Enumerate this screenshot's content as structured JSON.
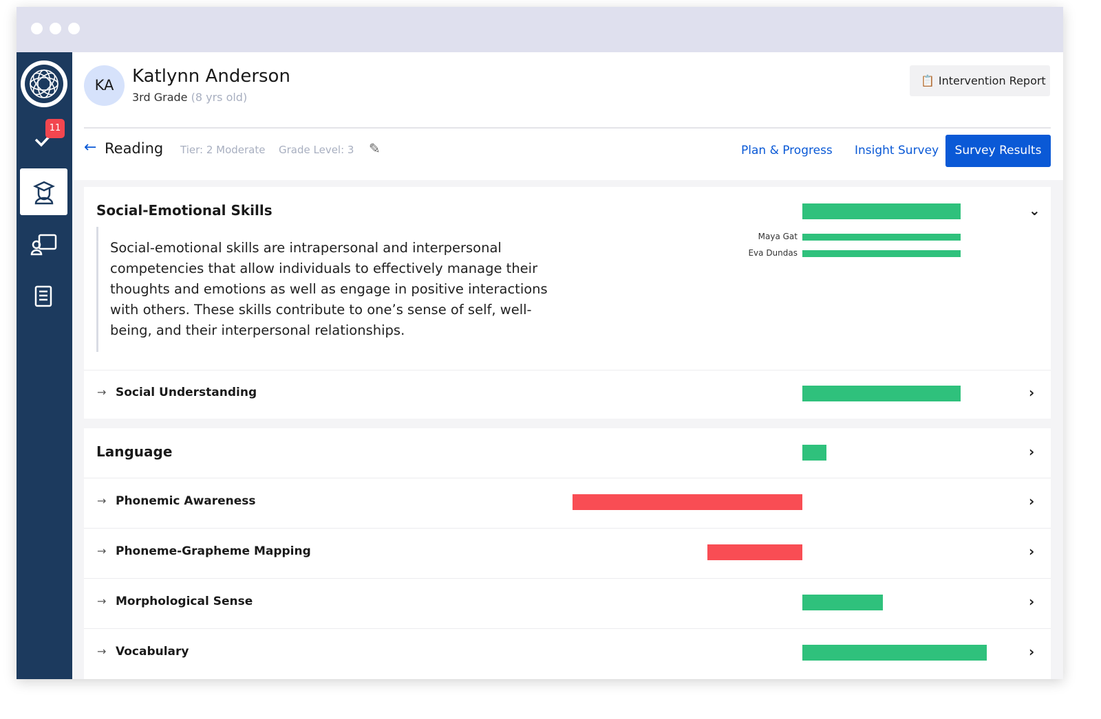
{
  "header": {
    "initials": "KA",
    "name": "Katlynn Anderson",
    "grade": "3rd Grade",
    "age": "(8 yrs old)",
    "badge": "11",
    "report_button": "Intervention Report"
  },
  "subject": {
    "name": "Reading",
    "tier": "Tier: 2 Moderate",
    "grade_level": "Grade Level: 3"
  },
  "tabs": [
    "Plan & Progress",
    "Insight Survey",
    "Survey Results"
  ],
  "sections": [
    {
      "title": "Social-Emotional Skills",
      "value": 23,
      "description": "Social-emotional skills are intrapersonal and interpersonal competencies that allow individuals to effectively manage their thoughts and emotions as well as engage in positive interactions with others. These skills contribute to one’s sense of self, well-being, and their interpersonal relationships.",
      "raters": [
        {
          "name": "Maya Gat",
          "value": 23
        },
        {
          "name": "Eva Dundas",
          "value": 23
        }
      ],
      "rows": [
        {
          "label": "Social Understanding",
          "value": 23
        }
      ]
    },
    {
      "title": "Language",
      "value": 3.5,
      "rows": [
        {
          "label": "Phonemic Awareness",
          "value": -33.4
        },
        {
          "label": "Phoneme-Grapheme Mapping",
          "value": -13.8
        },
        {
          "label": "Morphological Sense",
          "value": 11.7
        },
        {
          "label": "Vocabulary",
          "value": 26.8
        }
      ]
    }
  ]
}
